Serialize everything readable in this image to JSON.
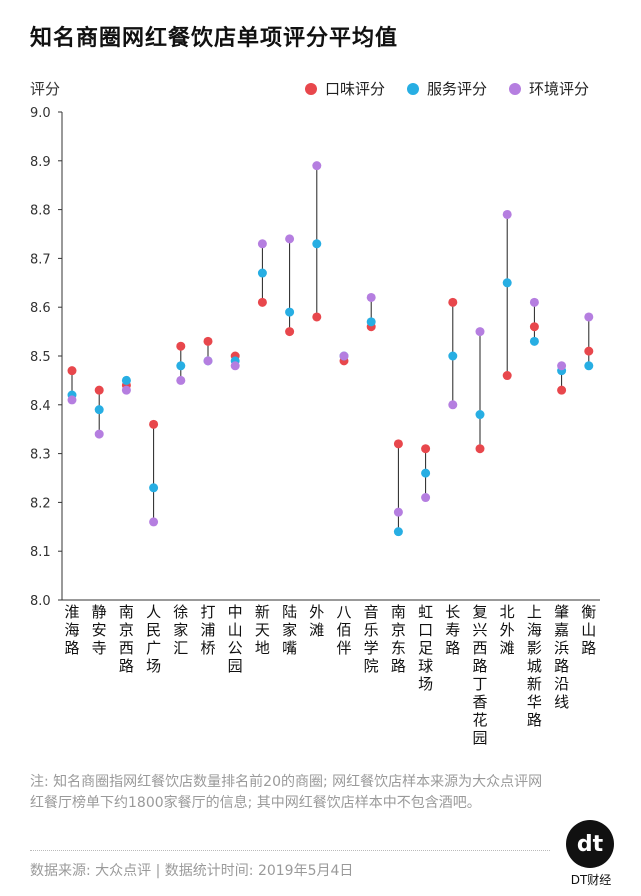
{
  "chart_data": {
    "type": "dot-range",
    "title": "知名商圈网红餐饮店单项评分平均值",
    "ylabel": "评分",
    "ylim": [
      8.0,
      9.0
    ],
    "yticks": [
      "9.0",
      "8.9",
      "8.8",
      "8.7",
      "8.6",
      "8.5",
      "8.4",
      "8.3",
      "8.2",
      "8.1",
      "8.0"
    ],
    "categories": [
      "淮海路",
      "静安寺",
      "南京西路",
      "人民广场",
      "徐家汇",
      "打浦桥",
      "中山公园",
      "新天地",
      "陆家嘴",
      "外滩",
      "八佰伴",
      "音乐学院",
      "南京东路",
      "虹口足球场",
      "长寿路",
      "复兴西路丁香花园",
      "北外滩",
      "上海影城新华路",
      "肇嘉浜路沿线",
      "衡山路"
    ],
    "series": [
      {
        "name": "口味评分",
        "color": "#e8474c",
        "values": [
          8.47,
          8.43,
          8.44,
          8.36,
          8.52,
          8.53,
          8.5,
          8.61,
          8.55,
          8.58,
          8.49,
          8.56,
          8.32,
          8.31,
          8.61,
          8.31,
          8.46,
          8.56,
          8.43,
          8.51
        ]
      },
      {
        "name": "服务评分",
        "color": "#27aee3",
        "values": [
          8.42,
          8.39,
          8.45,
          8.23,
          8.48,
          8.49,
          8.49,
          8.67,
          8.59,
          8.73,
          8.5,
          8.57,
          8.14,
          8.26,
          8.5,
          8.38,
          8.65,
          8.53,
          8.47,
          8.48
        ]
      },
      {
        "name": "环境评分",
        "color": "#b57ee0",
        "values": [
          8.41,
          8.34,
          8.43,
          8.16,
          8.45,
          8.49,
          8.48,
          8.73,
          8.74,
          8.89,
          8.5,
          8.62,
          8.18,
          8.21,
          8.4,
          8.55,
          8.79,
          8.61,
          8.48,
          8.58
        ]
      }
    ]
  },
  "footer": {
    "note": "注: 知名商圈指网红餐饮店数量排名前20的商圈; 网红餐饮店样本来源为大众点评网红餐厅榜单下约1800家餐厅的信息; 其中网红餐饮店样本中不包含酒吧。",
    "source": "数据来源: 大众点评 | 数据统计时间: 2019年5月4日",
    "logo_text": "dt",
    "logo_caption": "DT财经"
  }
}
